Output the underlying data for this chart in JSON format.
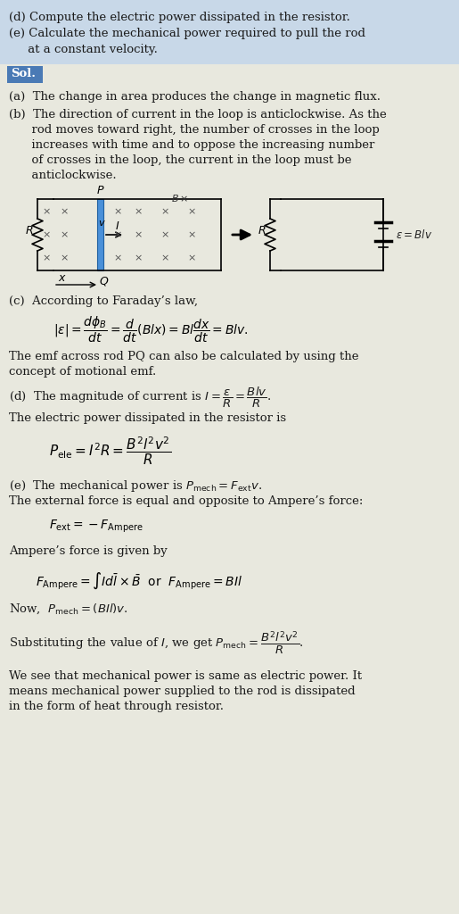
{
  "bg_top": "#c8d8e8",
  "bg_sol": "#4a7ab5",
  "bg_main": "#e8e8de",
  "text_color": "#1a1a1a",
  "title_line1": "(d) Compute the electric power dissipated in the resistor.",
  "title_line2": "(e) Calculate the mechanical power required to pull the rod",
  "title_line3": "     at a constant velocity.",
  "sol_label": "Sol.",
  "sec_a": "(a)  The change in area produces the change in magnetic flux.",
  "sec_b1": "(b)  The direction of current in the loop is anticlockwise. As the",
  "sec_b2": "      rod moves toward right, the number of crosses in the loop",
  "sec_b3": "      increases with time and to oppose the increasing number",
  "sec_b4": "      of crosses in the loop, the current in the loop must be",
  "sec_b5": "      anticlockwise.",
  "sec_c_title": "(c)  According to Faraday’s law,",
  "sec_c_text1": "The emf across rod PQ can also be calculated by using the",
  "sec_c_text2": "concept of motional emf.",
  "sec_d_text": "The electric power dissipated in the resistor is",
  "sec_e_text1": "The external force is equal and opposite to Ampere’s force:",
  "sec_e_text2": "Ampere’s force is given by",
  "sec_e_text3": "We see that mechanical power is same as electric power. It",
  "sec_e_text4": "means mechanical power supplied to the rod is dissipated",
  "sec_e_text5": "in the form of heat through resistor."
}
